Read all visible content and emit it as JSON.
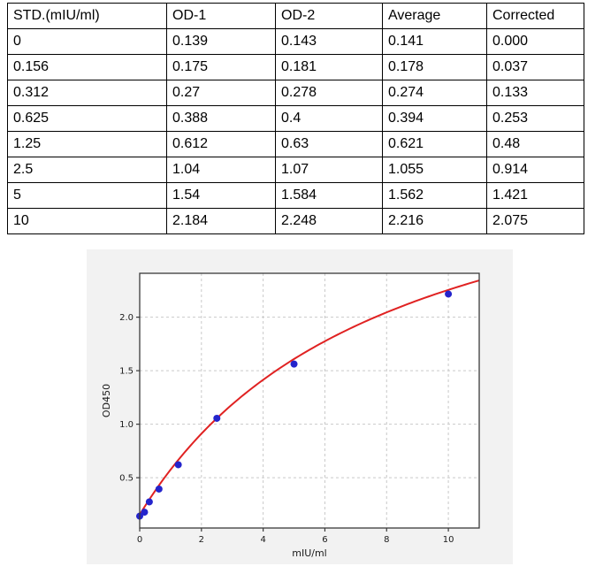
{
  "table": {
    "columns": [
      "STD.(mIU/ml)",
      "OD-1",
      "OD-2",
      "Average",
      "Corrected"
    ],
    "rows": [
      [
        "0",
        "0.139",
        "0.143",
        "0.141",
        "0.000"
      ],
      [
        "0.156",
        "0.175",
        "0.181",
        "0.178",
        "0.037"
      ],
      [
        "0.312",
        "0.27",
        "0.278",
        "0.274",
        "0.133"
      ],
      [
        "0.625",
        "0.388",
        "0.4",
        "0.394",
        "0.253"
      ],
      [
        "1.25",
        "0.612",
        "0.63",
        "0.621",
        "0.48"
      ],
      [
        "2.5",
        "1.04",
        "1.07",
        "1.055",
        "0.914"
      ],
      [
        "5",
        "1.54",
        "1.584",
        "1.562",
        "1.421"
      ],
      [
        "10",
        "2.184",
        "2.248",
        "2.216",
        "2.075"
      ]
    ]
  },
  "chart_data": {
    "type": "scatter",
    "title": "",
    "xlabel": "mIU/ml",
    "ylabel": "OD450",
    "x": [
      0,
      0.156,
      0.312,
      0.625,
      1.25,
      2.5,
      5,
      10
    ],
    "y": [
      0.141,
      0.178,
      0.274,
      0.394,
      0.621,
      1.055,
      1.562,
      2.216
    ],
    "fit_curve": {
      "model": "y = y0 + a*x/(b+x)",
      "y0": 0.155,
      "a": 3.78,
      "b": 8.0
    },
    "xlim": [
      0,
      11
    ],
    "ylim": [
      0.03,
      2.41
    ],
    "xticks": [
      0,
      2,
      4,
      6,
      8,
      10
    ],
    "yticks": [
      0.5,
      1.0,
      1.5,
      2.0
    ],
    "grid": true,
    "grid_style": "dashed",
    "legend": "none",
    "marker": "circle",
    "colors": {
      "point": "#2424cc",
      "curve": "#e02222",
      "figure_bg": "#f2f2f2",
      "plot_bg": "#ffffff",
      "grid": "#c9c9c9",
      "spine": "#3a3a3a",
      "text": "#1a1a1a"
    }
  }
}
